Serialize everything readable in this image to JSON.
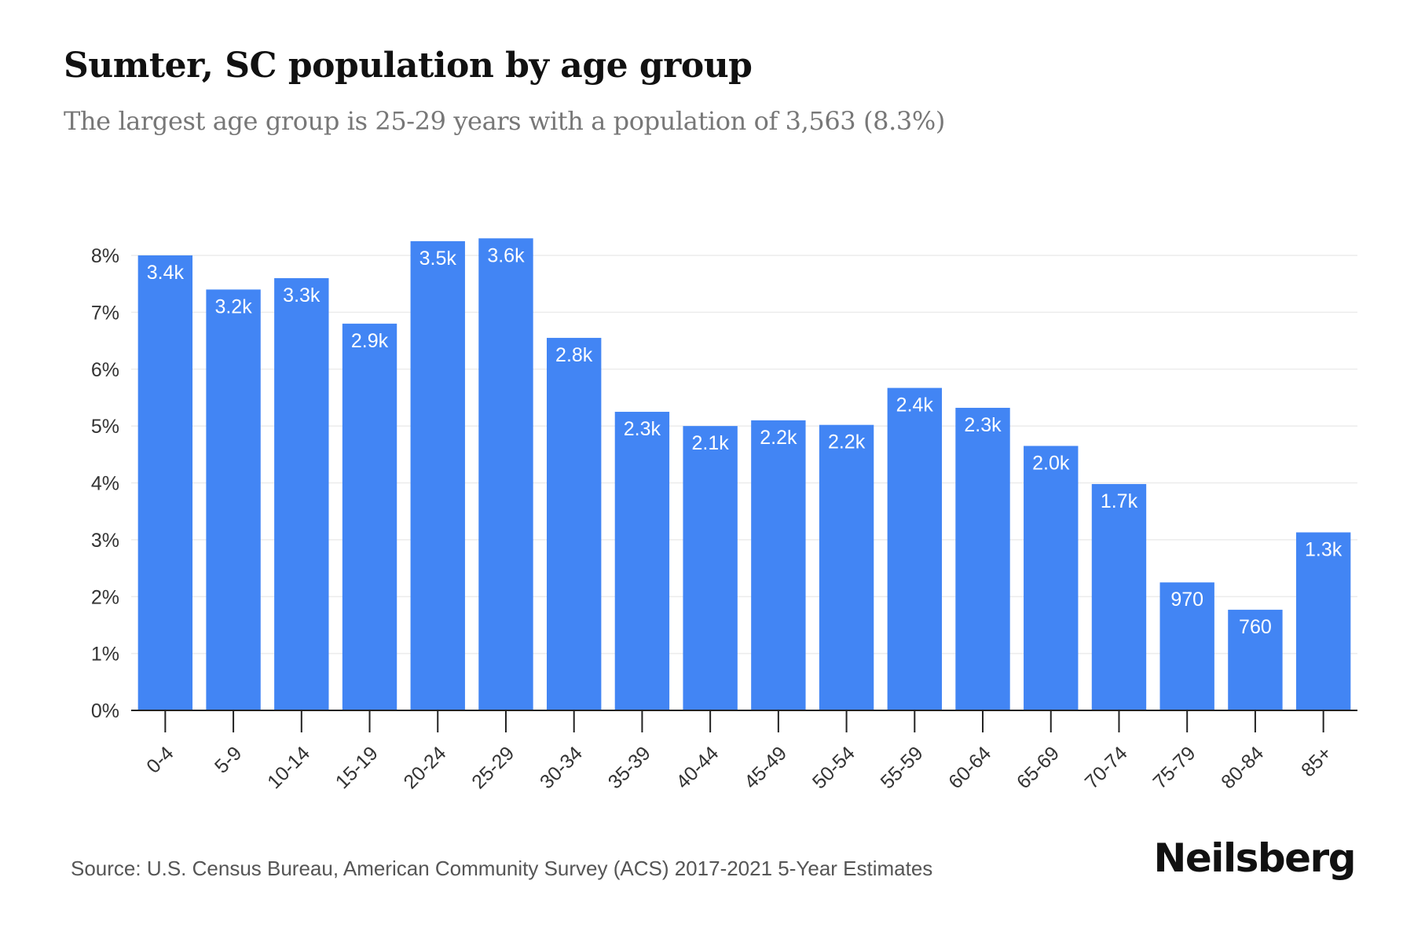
{
  "header": {
    "title": "Sumter, SC population by age group",
    "subtitle": "The largest age group is 25-29 years with a population of 3,563 (8.3%)"
  },
  "footer": {
    "source": "Source: U.S. Census Bureau, American Community Survey (ACS) 2017-2021 5-Year Estimates",
    "brand": "Neilsberg"
  },
  "colors": {
    "bar": "#4285f4",
    "bar_label": "#ffffff",
    "grid": "#ececec",
    "axis": "#222222",
    "tick_text": "#333333"
  },
  "chart_data": {
    "type": "bar",
    "title": "Sumter, SC population by age group",
    "subtitle": "The largest age group is 25-29 years with a population of 3,563 (8.3%)",
    "xlabel": "",
    "ylabel": "",
    "categories": [
      "0-4",
      "5-9",
      "10-14",
      "15-19",
      "20-24",
      "25-29",
      "30-34",
      "35-39",
      "40-44",
      "45-49",
      "50-54",
      "55-59",
      "60-64",
      "65-69",
      "70-74",
      "75-79",
      "80-84",
      "85+"
    ],
    "values": [
      8.0,
      7.4,
      7.6,
      6.8,
      8.25,
      8.3,
      6.55,
      5.25,
      5.0,
      5.1,
      5.02,
      5.67,
      5.32,
      4.65,
      3.98,
      2.25,
      1.77,
      3.13
    ],
    "labels": [
      "3.4k",
      "3.2k",
      "3.3k",
      "2.9k",
      "3.5k",
      "3.6k",
      "2.8k",
      "2.3k",
      "2.1k",
      "2.2k",
      "2.2k",
      "2.4k",
      "2.3k",
      "2.0k",
      "1.7k",
      "970",
      "760",
      "1.3k"
    ],
    "ylim": [
      0,
      8
    ],
    "yticks": [
      0,
      1,
      2,
      3,
      4,
      5,
      6,
      7,
      8
    ],
    "ytick_labels": [
      "0%",
      "1%",
      "2%",
      "3%",
      "4%",
      "5%",
      "6%",
      "7%",
      "8%"
    ],
    "grid": true,
    "legend": "none"
  }
}
